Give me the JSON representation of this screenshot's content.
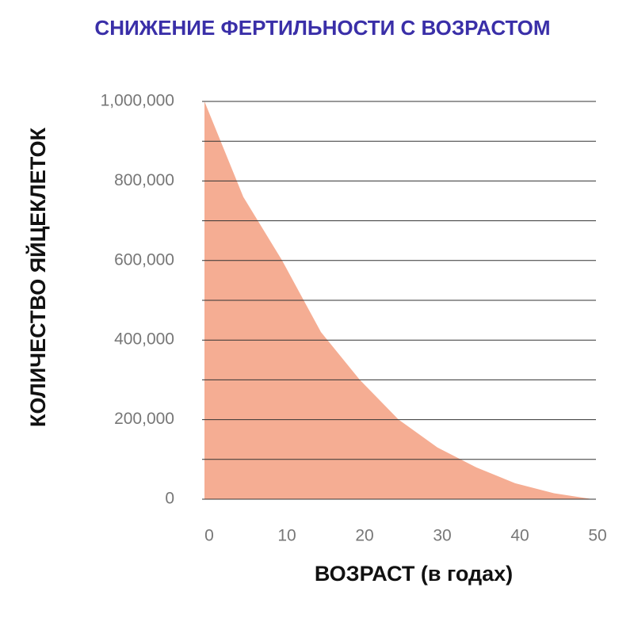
{
  "chart_data": {
    "type": "area",
    "title": "СНИЖЕНИЕ ФЕРТИЛЬНОСТИ С ВОЗРАСТОМ",
    "y_label": "КОЛИЧЕСТВО ЯЙЦЕКЛЕТОК",
    "x_label": "ВОЗРАСТ (в годах)",
    "x": [
      0,
      5,
      10,
      15,
      20,
      25,
      30,
      35,
      40,
      45,
      50
    ],
    "values": [
      1000000,
      760000,
      600000,
      420000,
      300000,
      200000,
      130000,
      80000,
      40000,
      15000,
      0
    ],
    "color": "#f5ad93",
    "xlim": [
      0,
      50
    ],
    "xticks": [
      0,
      10,
      20,
      30,
      40,
      50
    ],
    "ylim": [
      0,
      1000000
    ],
    "yticks": [
      0,
      {
        "value": 200000,
        "label": "200,000"
      },
      {
        "value": 400000,
        "label": "400,000"
      },
      {
        "value": 600000,
        "label": "600,000"
      },
      {
        "value": 800000,
        "label": "800,000"
      },
      {
        "value": 1000000,
        "label": "1,000,000"
      }
    ],
    "ygrid": [
      0,
      100000,
      200000,
      300000,
      400000,
      500000,
      600000,
      700000,
      800000,
      900000,
      1000000
    ],
    "grid": true
  }
}
